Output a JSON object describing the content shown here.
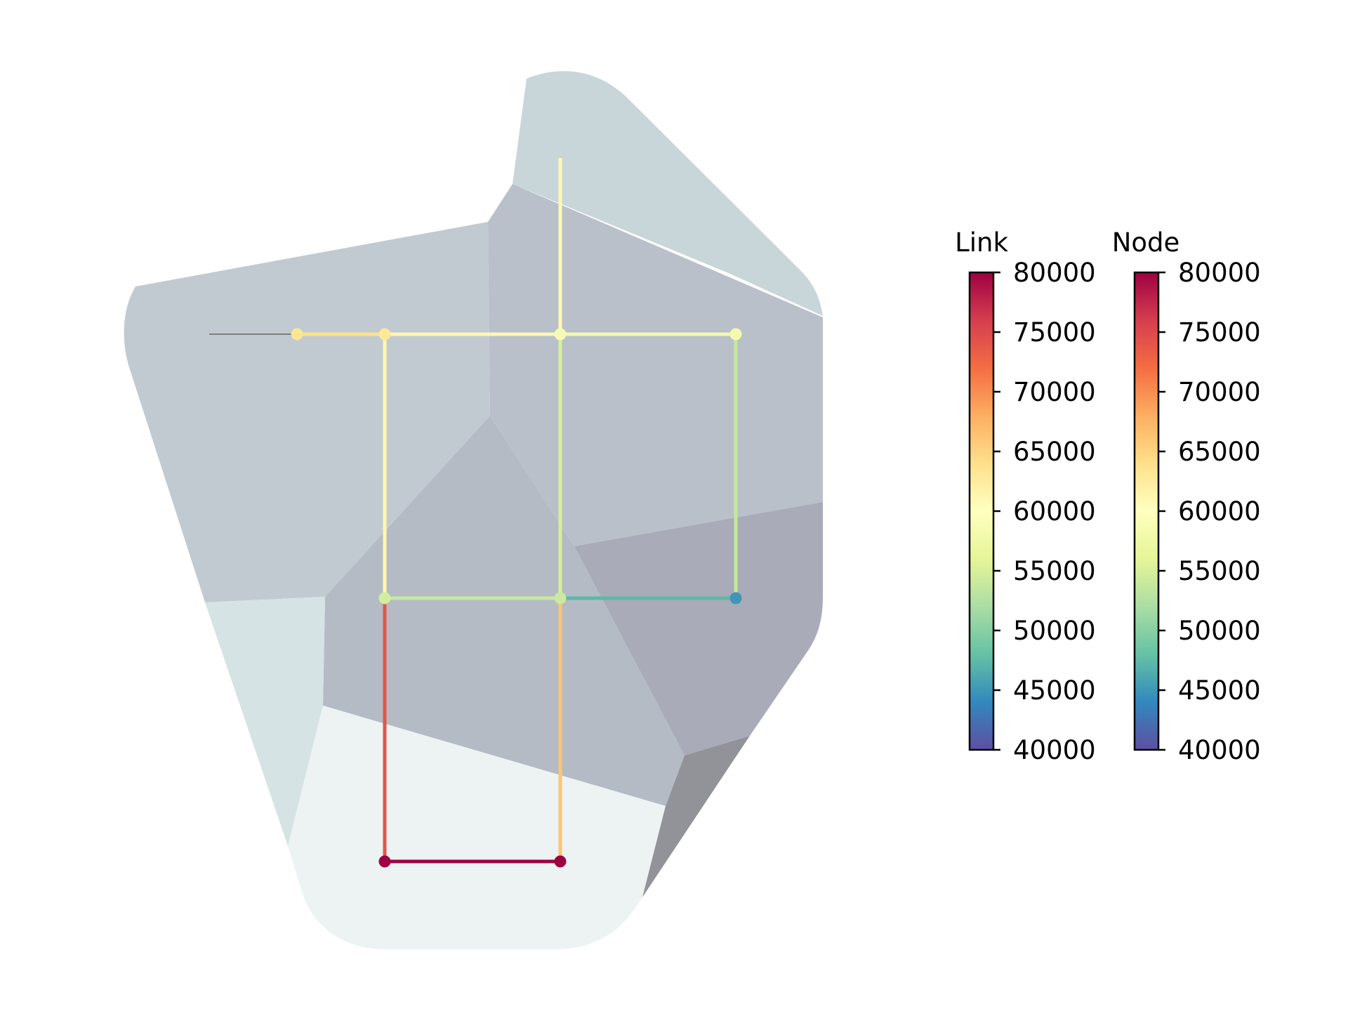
{
  "map": {
    "regions": [
      {
        "name": "region-top-right",
        "color": "#c8d5d9"
      },
      {
        "name": "region-upper-left",
        "color": "#c2cad1"
      },
      {
        "name": "region-upper-center",
        "color": "#b9c0ca"
      },
      {
        "name": "region-center",
        "color": "#b4bbc5"
      },
      {
        "name": "region-right",
        "color": "#a9abb9"
      },
      {
        "name": "region-lower-left",
        "color": "#d5e3e4"
      },
      {
        "name": "region-bottom",
        "color": "#edf2f2"
      },
      {
        "name": "region-bottom-right",
        "color": "#929399"
      }
    ],
    "nodes": [
      {
        "id": "n1",
        "color": "#fee593"
      },
      {
        "id": "n2",
        "color": "#fee999"
      },
      {
        "id": "n3",
        "color": "#f6fbb2"
      },
      {
        "id": "n4",
        "color": "#f3fab0"
      },
      {
        "id": "n5",
        "color": "#d3ee9b"
      },
      {
        "id": "n6",
        "color": "#cbea9d"
      },
      {
        "id": "n7",
        "color": "#3f96b7"
      },
      {
        "id": "n8",
        "color": "#9e0142"
      },
      {
        "id": "n9",
        "color": "#9e0142"
      }
    ],
    "links": [
      {
        "from": "n1",
        "to": "n2",
        "color": "#fee08b"
      },
      {
        "from": "n2",
        "to": "n3",
        "color": "#fdf7b2"
      },
      {
        "from": "n3",
        "to": "n4",
        "color": "#f2f9ae"
      },
      {
        "from": "n3",
        "to": "top-end",
        "color": "#fdf8b3"
      },
      {
        "from": "n2",
        "to": "n5",
        "color": "#fef7ae"
      },
      {
        "from": "n3",
        "to": "n6",
        "color": "#d7ef9b"
      },
      {
        "from": "n4",
        "to": "n7",
        "color": "#c6e89a"
      },
      {
        "from": "n5",
        "to": "n6",
        "color": "#c8e99d"
      },
      {
        "from": "n6",
        "to": "n7",
        "color": "#5bb9a8"
      },
      {
        "from": "n5",
        "to": "n8",
        "color": "#e0574b"
      },
      {
        "from": "n6",
        "to": "n9",
        "color": "#fdc474"
      },
      {
        "from": "n8",
        "to": "n9",
        "color": "#9e0142"
      }
    ],
    "inlet_line_color": "#666666"
  },
  "colorbars": [
    {
      "title": "Link",
      "min": 40000,
      "max": 80000,
      "ticks": [
        "80000",
        "75000",
        "70000",
        "65000",
        "60000",
        "55000",
        "50000",
        "45000",
        "40000"
      ]
    },
    {
      "title": "Node",
      "min": 40000,
      "max": 80000,
      "ticks": [
        "80000",
        "75000",
        "70000",
        "65000",
        "60000",
        "55000",
        "50000",
        "45000",
        "40000"
      ]
    }
  ],
  "colormap": "Spectral_r",
  "colormap_stops": [
    "#5e4fa2",
    "#3288bd",
    "#66c2a5",
    "#abdda4",
    "#e6f598",
    "#ffffbf",
    "#fee08b",
    "#fdae61",
    "#f46d43",
    "#d53e4f",
    "#9e0142"
  ]
}
